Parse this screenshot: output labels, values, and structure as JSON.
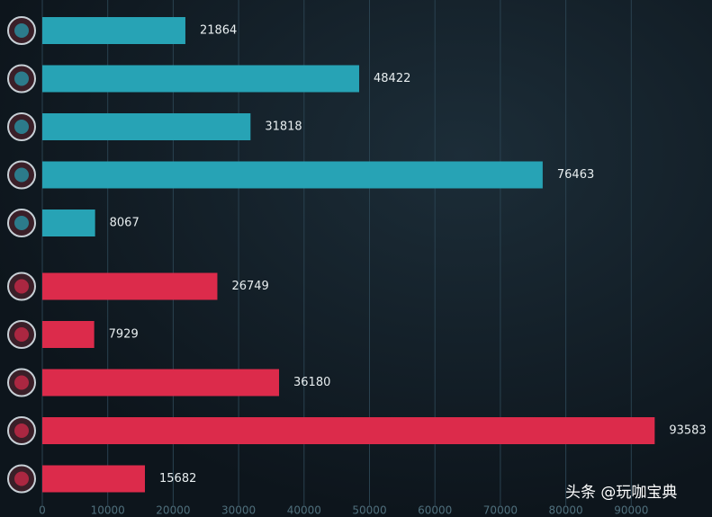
{
  "chart_data": {
    "type": "hbar",
    "categories": [
      null,
      null,
      null,
      null,
      null,
      null,
      null,
      null,
      null,
      null
    ],
    "series": [
      {
        "color": "#27a3b5",
        "values": [
          21864,
          48422,
          31818,
          76463,
          8067,
          null,
          null,
          null,
          null,
          null
        ]
      },
      {
        "color": "#dc2b4b",
        "values": [
          null,
          null,
          null,
          null,
          null,
          26749,
          7929,
          36180,
          93583,
          15682
        ]
      }
    ],
    "xlim": [
      0,
      100000
    ],
    "xticks": [
      0,
      10000,
      20000,
      30000,
      40000,
      50000,
      60000,
      70000,
      80000,
      90000
    ],
    "grid": true,
    "watermark": "头条 @玩咖宝典"
  }
}
